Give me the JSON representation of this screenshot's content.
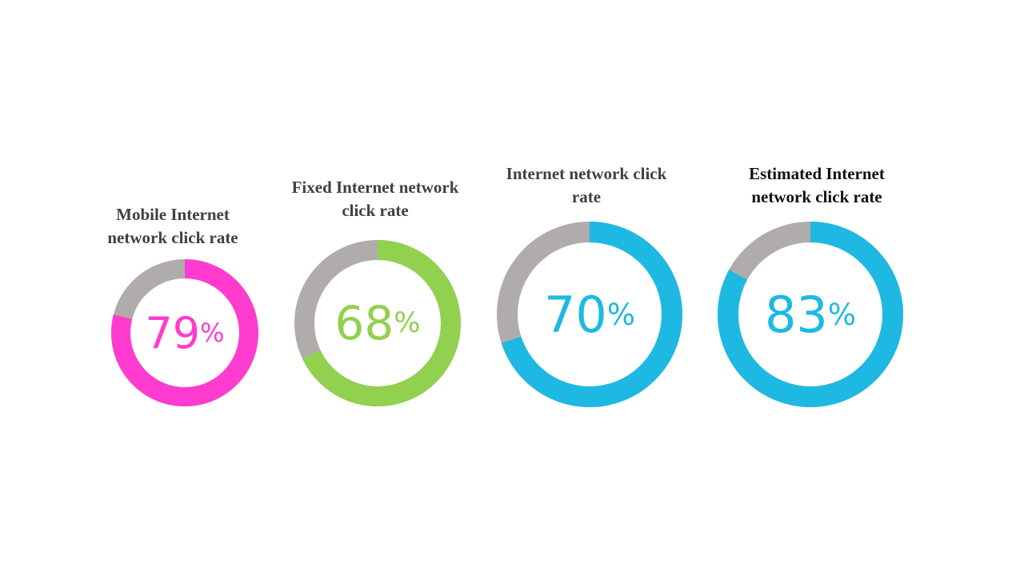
{
  "chart_data": [
    {
      "type": "donut",
      "title": "Mobile Internet network click rate",
      "values": [
        79
      ],
      "value_labels": [
        "79%"
      ],
      "color": "#ff3ccf"
    },
    {
      "type": "donut",
      "title": "Fixed Internet network click rate",
      "values": [
        68
      ],
      "value_labels": [
        "68%"
      ],
      "color": "#92d050"
    },
    {
      "type": "donut",
      "title": "Internet network click rate",
      "values": [
        70
      ],
      "value_labels": [
        "70%"
      ],
      "color": "#1eb9e3"
    },
    {
      "type": "donut",
      "title": "Estimated Internet network click rate",
      "values": [
        83
      ],
      "value_labels": [
        "83%"
      ],
      "color": "#1eb9e3"
    }
  ]
}
